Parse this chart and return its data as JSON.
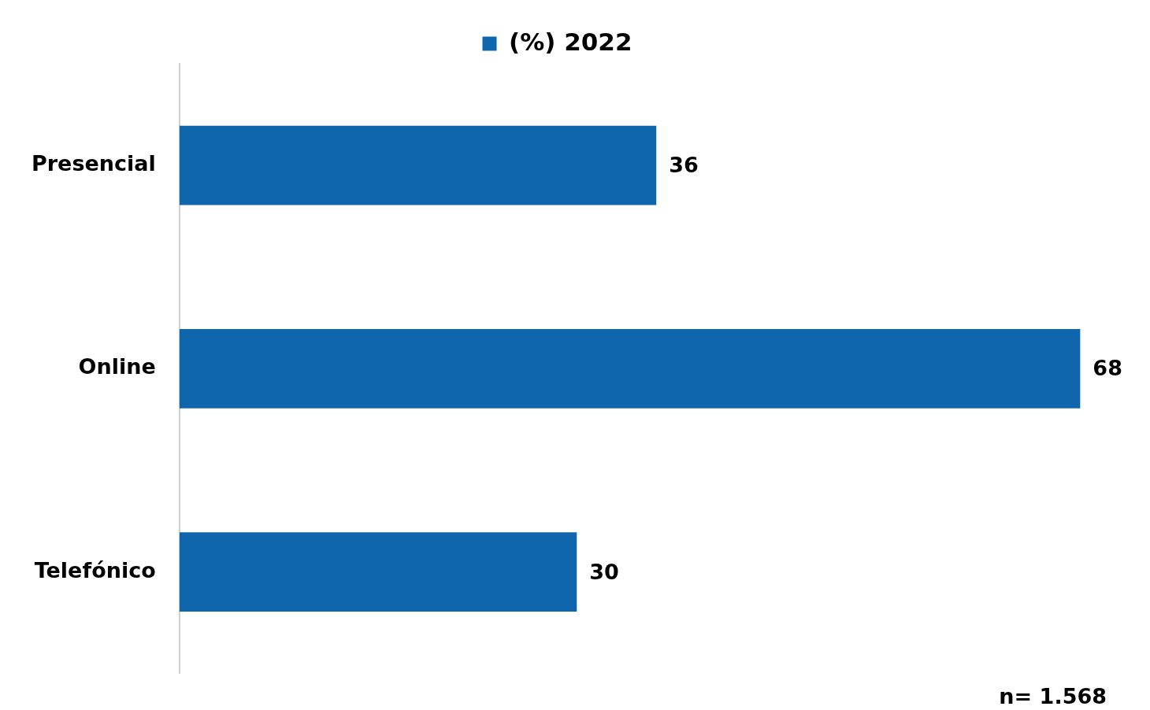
{
  "chart_data": {
    "type": "bar",
    "orientation": "horizontal",
    "categories": [
      "Presencial",
      "Online",
      "Telefónico"
    ],
    "series": [
      {
        "name": "(%) 2022",
        "color": "#1066ad",
        "values": [
          36,
          68,
          30
        ]
      }
    ],
    "data_labels": true,
    "legend": "top",
    "annotations": [
      "n= 1.568"
    ]
  }
}
